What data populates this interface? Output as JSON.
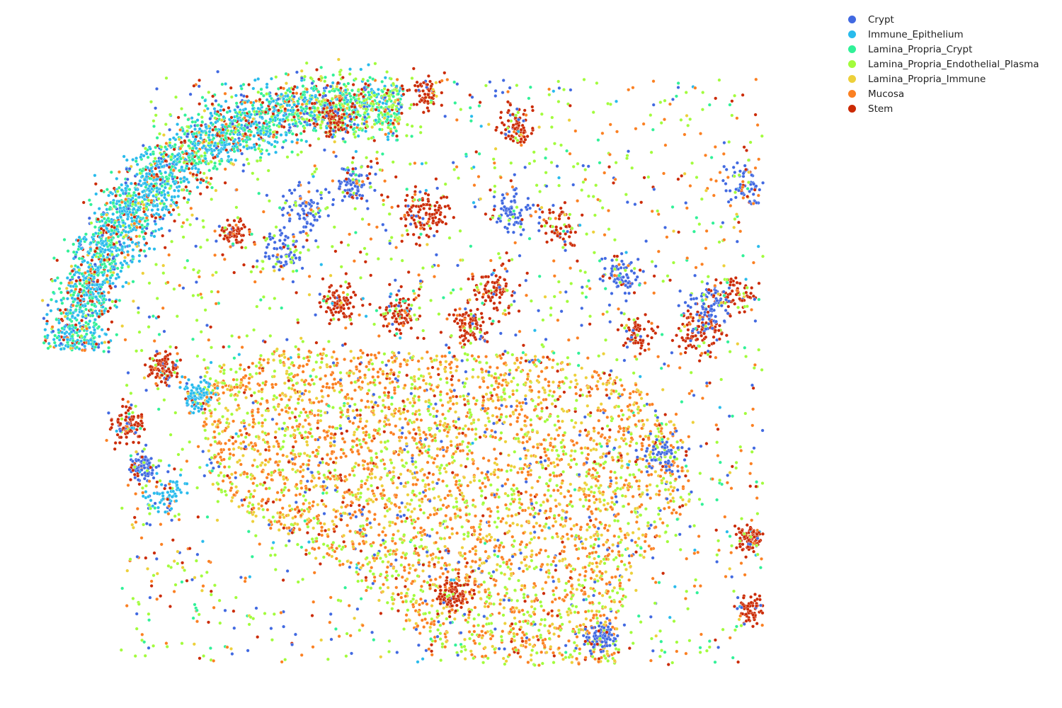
{
  "chart_data": {
    "type": "scatter",
    "title": "",
    "xlabel": "",
    "ylabel": "",
    "axes_visible": false,
    "grid": false,
    "legend_position": "top-right",
    "series": [
      {
        "name": "Crypt",
        "color": "#4169e1"
      },
      {
        "name": "Immune_Epithelium",
        "color": "#29bbec"
      },
      {
        "name": "Lamina_Propria_Crypt",
        "color": "#31f198"
      },
      {
        "name": "Lamina_Propria_Endothelial_Plasma",
        "color": "#a2fc3c"
      },
      {
        "name": "Lamina_Propria_Immune",
        "color": "#edd03a"
      },
      {
        "name": "Mucosa",
        "color": "#fb8022"
      },
      {
        "name": "Stem",
        "color": "#cb2a04"
      }
    ]
  }
}
